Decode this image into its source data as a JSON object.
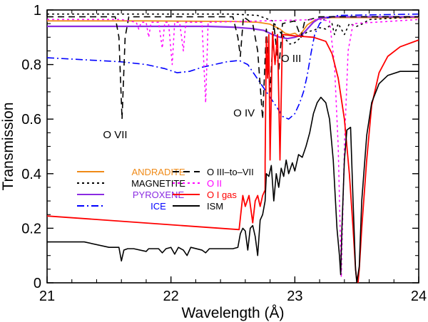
{
  "chart_data": {
    "type": "line",
    "xlabel": "Wavelength (Å)",
    "ylabel": "Transmission",
    "xlim": [
      21,
      24
    ],
    "ylim": [
      0,
      1
    ],
    "xticks": [
      21,
      22,
      23,
      24
    ],
    "xtick_labels": [
      "21",
      "22",
      "23",
      "24"
    ],
    "yticks": [
      0,
      0.2,
      0.4,
      0.6,
      0.8,
      1
    ],
    "ytick_labels": [
      "0",
      "0.2",
      "0.4",
      "0.6",
      "0.8",
      "1"
    ],
    "annotations": [
      {
        "text": "O VII",
        "x": 21.55,
        "y": 0.53
      },
      {
        "text": "O IV",
        "x": 22.59,
        "y": 0.61
      },
      {
        "text": "O III",
        "x": 22.97,
        "y": 0.81
      }
    ],
    "legend": [
      {
        "name": "ANDRADITE",
        "color": "#ef8a17",
        "dash": "",
        "text_color": "#ef8a17"
      },
      {
        "name": "MAGNETITE",
        "color": "#000000",
        "dash": "3,4",
        "text_color": "#000000"
      },
      {
        "name": "PYROXENE",
        "color": "#8a2be2",
        "dash": "",
        "text_color": "#8a2be2"
      },
      {
        "name": "ICE",
        "color": "#0000ff",
        "dash": "10,4,2,4",
        "text_color": "#0000ff"
      },
      {
        "name": "O III–to–VII",
        "color": "#000000",
        "dash": "9,6",
        "text_color": "#000000"
      },
      {
        "name": "O II",
        "color": "#ff00ff",
        "dash": "3,4",
        "text_color": "#ff00ff"
      },
      {
        "name": "O I gas",
        "color": "#ff0000",
        "dash": "",
        "text_color": "#ff0000"
      },
      {
        "name": "ISM",
        "color": "#000000",
        "dash": "",
        "text_color": "#000000"
      }
    ],
    "series": [
      {
        "name": "ANDRADITE",
        "color": "#ef8a17",
        "width": 1.8,
        "dash": "",
        "points": [
          [
            21,
            0.96
          ],
          [
            21.8,
            0.96
          ],
          [
            22.5,
            0.958
          ],
          [
            22.7,
            0.955
          ],
          [
            22.8,
            0.948
          ],
          [
            22.88,
            0.93
          ],
          [
            22.92,
            0.915
          ],
          [
            22.96,
            0.91
          ],
          [
            23.0,
            0.915
          ],
          [
            23.03,
            0.905
          ],
          [
            23.06,
            0.92
          ],
          [
            23.1,
            0.945
          ],
          [
            23.15,
            0.96
          ],
          [
            23.2,
            0.968
          ],
          [
            23.3,
            0.972
          ],
          [
            24,
            0.972
          ]
        ]
      },
      {
        "name": "MAGNETITE",
        "color": "#000000",
        "width": 1.6,
        "dash": "3,4",
        "points": [
          [
            21,
            0.985
          ],
          [
            21.5,
            0.985
          ],
          [
            22.5,
            0.985
          ],
          [
            22.7,
            0.98
          ],
          [
            22.82,
            0.96
          ],
          [
            22.88,
            0.92
          ],
          [
            22.93,
            0.89
          ],
          [
            22.96,
            0.875
          ],
          [
            23.0,
            0.88
          ],
          [
            23.05,
            0.9
          ],
          [
            23.1,
            0.92
          ],
          [
            23.15,
            0.925
          ],
          [
            23.2,
            0.935
          ],
          [
            23.25,
            0.93
          ],
          [
            23.3,
            0.95
          ],
          [
            23.32,
            0.91
          ],
          [
            23.35,
            0.95
          ],
          [
            23.4,
            0.91
          ],
          [
            23.44,
            0.95
          ],
          [
            23.5,
            0.94
          ],
          [
            23.55,
            0.95
          ],
          [
            23.6,
            0.965
          ],
          [
            24,
            0.975
          ]
        ]
      },
      {
        "name": "PYROXENE",
        "color": "#8a2be2",
        "width": 2.2,
        "dash": "",
        "points": [
          [
            21,
            0.94
          ],
          [
            22.3,
            0.94
          ],
          [
            22.5,
            0.937
          ],
          [
            22.65,
            0.932
          ],
          [
            22.75,
            0.925
          ],
          [
            22.82,
            0.91
          ],
          [
            22.88,
            0.9
          ],
          [
            22.94,
            0.895
          ],
          [
            23.0,
            0.9
          ],
          [
            23.06,
            0.91
          ],
          [
            23.1,
            0.93
          ],
          [
            23.15,
            0.955
          ],
          [
            23.2,
            0.97
          ],
          [
            23.3,
            0.975
          ],
          [
            24,
            0.975
          ]
        ]
      },
      {
        "name": "ICE",
        "color": "#0000ff",
        "width": 1.6,
        "dash": "10,4,2,4",
        "points": [
          [
            21,
            0.825
          ],
          [
            21.2,
            0.82
          ],
          [
            21.4,
            0.815
          ],
          [
            21.6,
            0.81
          ],
          [
            21.8,
            0.8
          ],
          [
            21.95,
            0.785
          ],
          [
            22.05,
            0.77
          ],
          [
            22.15,
            0.775
          ],
          [
            22.25,
            0.79
          ],
          [
            22.35,
            0.8
          ],
          [
            22.45,
            0.81
          ],
          [
            22.55,
            0.815
          ],
          [
            22.62,
            0.8
          ],
          [
            22.68,
            0.76
          ],
          [
            22.74,
            0.72
          ],
          [
            22.8,
            0.68
          ],
          [
            22.86,
            0.64
          ],
          [
            22.9,
            0.61
          ],
          [
            22.95,
            0.6
          ],
          [
            23.0,
            0.62
          ],
          [
            23.04,
            0.66
          ],
          [
            23.07,
            0.7
          ],
          [
            23.1,
            0.76
          ],
          [
            23.13,
            0.84
          ],
          [
            23.16,
            0.91
          ],
          [
            23.2,
            0.95
          ],
          [
            23.25,
            0.97
          ],
          [
            23.35,
            0.98
          ],
          [
            24,
            0.985
          ]
        ]
      },
      {
        "name": "O III–to–VII",
        "color": "#000000",
        "width": 1.6,
        "dash": "9,6",
        "points": [
          [
            21,
            0.975
          ],
          [
            21.55,
            0.975
          ],
          [
            21.58,
            0.9
          ],
          [
            21.605,
            0.6
          ],
          [
            21.63,
            0.9
          ],
          [
            21.66,
            0.975
          ],
          [
            22.5,
            0.975
          ],
          [
            22.54,
            0.9
          ],
          [
            22.56,
            0.83
          ],
          [
            22.585,
            0.975
          ],
          [
            22.66,
            0.95
          ],
          [
            22.7,
            0.85
          ],
          [
            22.74,
            0.6
          ],
          [
            22.77,
            0.93
          ],
          [
            22.8,
            0.7
          ],
          [
            22.83,
            0.95
          ],
          [
            22.87,
            0.78
          ],
          [
            22.9,
            0.95
          ],
          [
            23.0,
            0.96
          ],
          [
            23.05,
            0.9
          ],
          [
            23.08,
            0.96
          ],
          [
            23.2,
            0.975
          ],
          [
            24,
            0.975
          ]
        ]
      },
      {
        "name": "O II",
        "color": "#ff00ff",
        "width": 1.5,
        "dash": "3,4",
        "points": [
          [
            21,
            0.965
          ],
          [
            21.6,
            0.965
          ],
          [
            21.72,
            0.955
          ],
          [
            21.74,
            0.93
          ],
          [
            21.76,
            0.955
          ],
          [
            21.8,
            0.955
          ],
          [
            21.82,
            0.9
          ],
          [
            21.84,
            0.955
          ],
          [
            21.9,
            0.955
          ],
          [
            21.93,
            0.86
          ],
          [
            21.95,
            0.955
          ],
          [
            21.98,
            0.955
          ],
          [
            22.01,
            0.8
          ],
          [
            22.03,
            0.955
          ],
          [
            22.07,
            0.955
          ],
          [
            22.1,
            0.85
          ],
          [
            22.12,
            0.955
          ],
          [
            22.25,
            0.955
          ],
          [
            22.28,
            0.66
          ],
          [
            22.3,
            0.955
          ],
          [
            23.2,
            0.965
          ],
          [
            23.28,
            0.96
          ],
          [
            23.32,
            0.8
          ],
          [
            23.35,
            0.5
          ],
          [
            23.375,
            0.02
          ],
          [
            23.4,
            0.5
          ],
          [
            23.43,
            0.85
          ],
          [
            23.47,
            0.95
          ],
          [
            24,
            0.965
          ]
        ]
      },
      {
        "name": "O I gas",
        "color": "#ff0000",
        "width": 1.8,
        "dash": "",
        "points": [
          [
            21,
            0.245
          ],
          [
            22.55,
            0.195
          ],
          [
            22.58,
            0.32
          ],
          [
            22.6,
            0.28
          ],
          [
            22.63,
            0.32
          ],
          [
            22.66,
            0.22
          ],
          [
            22.68,
            0.3
          ],
          [
            22.7,
            0.32
          ],
          [
            22.72,
            0.28
          ],
          [
            22.74,
            0.32
          ],
          [
            22.76,
            0.34
          ],
          [
            22.76,
            0.44
          ],
          [
            22.77,
            0.9
          ],
          [
            22.78,
            0.75
          ],
          [
            22.79,
            0.91
          ],
          [
            22.8,
            0.45
          ],
          [
            22.82,
            0.92
          ],
          [
            22.84,
            0.8
          ],
          [
            22.86,
            0.91
          ],
          [
            22.88,
            0.45
          ],
          [
            22.9,
            0.91
          ],
          [
            23.0,
            0.905
          ],
          [
            23.15,
            0.9
          ],
          [
            23.25,
            0.885
          ],
          [
            23.3,
            0.84
          ],
          [
            23.35,
            0.75
          ],
          [
            23.4,
            0.6
          ],
          [
            23.44,
            0.4
          ],
          [
            23.47,
            0.2
          ],
          [
            23.49,
            0.05
          ],
          [
            23.5,
            0.01
          ],
          [
            23.51,
            0.0
          ],
          [
            23.52,
            0.05
          ],
          [
            23.54,
            0.2
          ],
          [
            23.58,
            0.45
          ],
          [
            23.62,
            0.65
          ],
          [
            23.68,
            0.77
          ],
          [
            23.75,
            0.83
          ],
          [
            23.85,
            0.865
          ],
          [
            24,
            0.89
          ]
        ]
      },
      {
        "name": "ISM",
        "color": "#000000",
        "width": 1.6,
        "dash": "",
        "points": [
          [
            21,
            0.15
          ],
          [
            21.3,
            0.15
          ],
          [
            21.5,
            0.13
          ],
          [
            21.58,
            0.13
          ],
          [
            21.6,
            0.08
          ],
          [
            21.62,
            0.12
          ],
          [
            21.65,
            0.125
          ],
          [
            21.7,
            0.125
          ],
          [
            21.8,
            0.115
          ],
          [
            21.82,
            0.125
          ],
          [
            21.9,
            0.125
          ],
          [
            21.93,
            0.11
          ],
          [
            21.96,
            0.125
          ],
          [
            22.0,
            0.13
          ],
          [
            22.03,
            0.105
          ],
          [
            22.06,
            0.13
          ],
          [
            22.1,
            0.12
          ],
          [
            22.13,
            0.1
          ],
          [
            22.16,
            0.13
          ],
          [
            22.25,
            0.12
          ],
          [
            22.28,
            0.11
          ],
          [
            22.31,
            0.125
          ],
          [
            22.4,
            0.125
          ],
          [
            22.5,
            0.125
          ],
          [
            22.54,
            0.13
          ],
          [
            22.56,
            0.18
          ],
          [
            22.58,
            0.2
          ],
          [
            22.6,
            0.19
          ],
          [
            22.62,
            0.12
          ],
          [
            22.64,
            0.2
          ],
          [
            22.66,
            0.21
          ],
          [
            22.68,
            0.17
          ],
          [
            22.7,
            0.1
          ],
          [
            22.72,
            0.23
          ],
          [
            22.74,
            0.25
          ],
          [
            22.76,
            0.3
          ],
          [
            22.77,
            0.4
          ],
          [
            22.79,
            0.39
          ],
          [
            22.81,
            0.43
          ],
          [
            22.83,
            0.3
          ],
          [
            22.85,
            0.4
          ],
          [
            22.87,
            0.35
          ],
          [
            22.89,
            0.42
          ],
          [
            22.91,
            0.39
          ],
          [
            22.93,
            0.45
          ],
          [
            22.95,
            0.4
          ],
          [
            22.98,
            0.44
          ],
          [
            23.0,
            0.41
          ],
          [
            23.03,
            0.47
          ],
          [
            23.06,
            0.46
          ],
          [
            23.09,
            0.5
          ],
          [
            23.12,
            0.55
          ],
          [
            23.15,
            0.62
          ],
          [
            23.18,
            0.66
          ],
          [
            23.21,
            0.68
          ],
          [
            23.25,
            0.66
          ],
          [
            23.28,
            0.6
          ],
          [
            23.31,
            0.45
          ],
          [
            23.34,
            0.2
          ],
          [
            23.36,
            0.1
          ],
          [
            23.37,
            0.03
          ],
          [
            23.38,
            0.2
          ],
          [
            23.4,
            0.45
          ],
          [
            23.42,
            0.56
          ],
          [
            23.45,
            0.57
          ],
          [
            23.47,
            0.3
          ],
          [
            23.49,
            0.05
          ],
          [
            23.5,
            0.0
          ],
          [
            23.52,
            0.06
          ],
          [
            23.54,
            0.3
          ],
          [
            23.58,
            0.54
          ],
          [
            23.62,
            0.66
          ],
          [
            23.68,
            0.73
          ],
          [
            23.75,
            0.76
          ],
          [
            23.85,
            0.775
          ],
          [
            24,
            0.775
          ]
        ]
      }
    ]
  }
}
